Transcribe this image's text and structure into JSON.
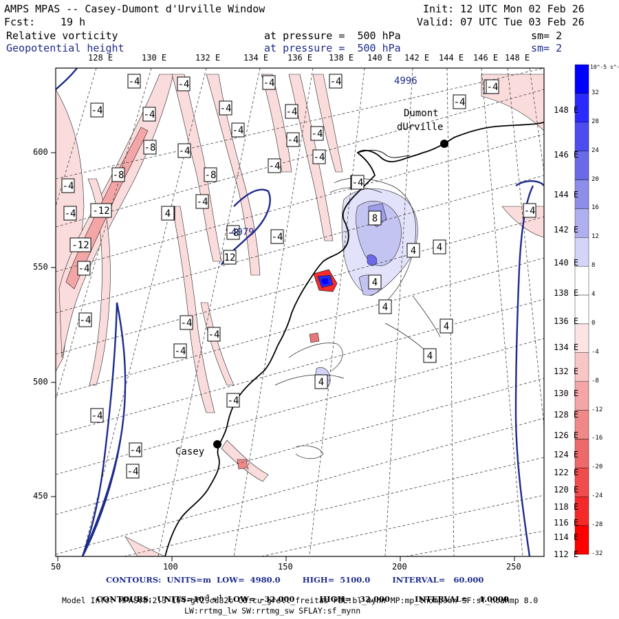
{
  "header": {
    "title": "AMPS MPAS -- Casey-Dumont d'Urville Window",
    "init": "Init: 12 UTC Mon 02 Feb 26",
    "fcst_label": "Fcst:",
    "fcst_value": "19 h",
    "valid": "Valid: 07 UTC Tue 03 Feb 26",
    "field1": {
      "name": "Relative vorticity",
      "level": "at pressure =  500 hPa",
      "sm": "sm= 2"
    },
    "field2": {
      "name": "Geopotential height",
      "level": "at pressure =  500 hPa",
      "sm": "sm= 2"
    }
  },
  "map": {
    "lon_labels": [
      "128 E",
      "130 E",
      "132 E",
      "134 E",
      "136 E",
      "138 E",
      "140 E",
      "142 E",
      "144 E",
      "146 E",
      "148 E"
    ],
    "lat_labels_right": [
      "148 E",
      "146 E",
      "144 E",
      "142 E",
      "140 E",
      "138 E",
      "136 E",
      "134 E",
      "132 E",
      "130 E",
      "128 E",
      "126 E",
      "124 E",
      "122 E",
      "120 E",
      "118 E",
      "116 E",
      "114 E",
      "112 E"
    ],
    "x_ticks": [
      "50",
      "100",
      "150",
      "200",
      "250"
    ],
    "y_ticks": [
      "600",
      "550",
      "500",
      "450"
    ],
    "stations": [
      {
        "name": "Dumont",
        "name2": "dUrville"
      },
      {
        "name": "Casey"
      }
    ],
    "height_labels": [
      "4996",
      "4979"
    ],
    "vort_labels": [
      "-4",
      "-4",
      "-4",
      "-4",
      "-4",
      "-4",
      "-4",
      "-4",
      "-4",
      "-4",
      "-4",
      "-4",
      "-4",
      "-4",
      "-4",
      "-4",
      "-4",
      "-4",
      "-4",
      "-4",
      "-4",
      "-4",
      "-4",
      "-4",
      "-4",
      "-4",
      "-4",
      "-4",
      "-4",
      "-4",
      "-8",
      "-8",
      "-8",
      "-8",
      "-12",
      "-12",
      "4",
      "4",
      "4",
      "4",
      "4",
      "4",
      "4",
      "8",
      "12",
      "4",
      "-4",
      "-4",
      "-4",
      "4",
      "16"
    ]
  },
  "colorbar": {
    "unit": "10^-5 s^-1",
    "labels": [
      "32",
      "28",
      "24",
      "20",
      "16",
      "12",
      "8",
      "4",
      "0",
      "-4",
      "-8",
      "-12",
      "-16",
      "-20",
      "-24",
      "-28",
      "-32"
    ],
    "colors": [
      "#0000ff",
      "#2a2aff",
      "#4c4cf0",
      "#6a6ae8",
      "#8e8eea",
      "#b0b0f0",
      "#d4d4f8",
      "#ffffff",
      "#ffffff",
      "#fce4e4",
      "#f8c6c6",
      "#f4a6a6",
      "#f08888",
      "#ee6a6a",
      "#f04c4c",
      "#f42a2a",
      "#ff0000"
    ]
  },
  "footer": {
    "contours1": "CONTOURS:  UNITS=m  LOW=  4980.0        HIGH=  5100.0        INTERVAL=   60.000",
    "contours2_a": "CONTOURS:  UNITS=10",
    "contours2_b": "-5",
    "contours2_c": " s",
    "contours2_d": "-1",
    "contours2_e": "  LOW=  -32.000         HIGH=   32.000         INTERVAL=    4.0000",
    "model_info": "Model Info: MPASv8.2.3-194-gf29cd82c CU:cu_grell_freitas PBL:bl_mynn MP:mp_thompson SF:sf_noahmp 8.0",
    "model_info2": "LW:rrtmg_lw SW:rrtmg_sw SFLAY:sf_mynn"
  }
}
